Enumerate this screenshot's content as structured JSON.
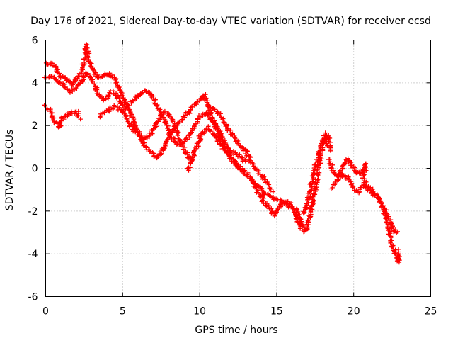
{
  "chart_data": {
    "type": "scatter",
    "title": "Day 176 of 2021, Sidereal Day-to-day VTEC variation (SDTVAR) for receiver ecsd",
    "xlabel": "GPS time / hours",
    "ylabel": "SDTVAR / TECUs",
    "xlim": [
      0,
      25
    ],
    "ylim": [
      -6,
      6
    ],
    "grid": true,
    "marker": "+",
    "color": "#ff0000",
    "x_ticks": [
      {
        "value": 0,
        "label": "0"
      },
      {
        "value": 5,
        "label": "5"
      },
      {
        "value": 10,
        "label": "10"
      },
      {
        "value": 15,
        "label": "15"
      },
      {
        "value": 20,
        "label": "20"
      },
      {
        "value": 25,
        "label": "25"
      }
    ],
    "y_ticks": [
      {
        "value": -6,
        "label": "-6"
      },
      {
        "value": -4,
        "label": "-4"
      },
      {
        "value": -2,
        "label": "-2"
      },
      {
        "value": 0,
        "label": "0"
      },
      {
        "value": 2,
        "label": "2"
      },
      {
        "value": 4,
        "label": "4"
      },
      {
        "value": 6,
        "label": "6"
      }
    ],
    "series": [
      {
        "name": "trace-1",
        "points": [
          [
            0.0,
            4.9
          ],
          [
            0.3,
            4.9
          ],
          [
            0.6,
            4.8
          ],
          [
            0.9,
            4.3
          ],
          [
            1.3,
            4.2
          ],
          [
            1.7,
            3.9
          ],
          [
            2.0,
            4.2
          ],
          [
            2.2,
            4.4
          ],
          [
            2.4,
            4.6
          ],
          [
            2.55,
            5.3
          ],
          [
            2.65,
            5.8
          ],
          [
            2.8,
            5.1
          ],
          [
            3.0,
            4.7
          ],
          [
            3.3,
            4.3
          ],
          [
            3.6,
            4.3
          ],
          [
            3.9,
            4.4
          ],
          [
            4.2,
            4.4
          ],
          [
            4.5,
            4.2
          ],
          [
            4.8,
            3.7
          ],
          [
            5.1,
            3.2
          ],
          [
            5.4,
            2.7
          ],
          [
            5.7,
            2.2
          ],
          [
            6.0,
            1.7
          ],
          [
            6.3,
            1.4
          ],
          [
            6.6,
            1.4
          ],
          [
            6.9,
            1.7
          ],
          [
            7.2,
            2.1
          ],
          [
            7.5,
            2.5
          ],
          [
            7.8,
            2.6
          ],
          [
            8.1,
            2.4
          ],
          [
            8.4,
            1.9
          ],
          [
            8.7,
            1.4
          ],
          [
            9.0,
            0.9
          ],
          [
            9.3,
            0.5
          ],
          [
            9.5,
            0.3
          ]
        ]
      },
      {
        "name": "trace-2",
        "points": [
          [
            0.0,
            4.2
          ],
          [
            0.4,
            4.3
          ],
          [
            0.8,
            4.1
          ],
          [
            1.2,
            3.8
          ],
          [
            1.6,
            3.6
          ],
          [
            2.0,
            3.8
          ],
          [
            2.3,
            4.0
          ],
          [
            2.6,
            4.5
          ],
          [
            2.9,
            4.2
          ],
          [
            3.2,
            3.8
          ],
          [
            3.5,
            3.4
          ],
          [
            3.8,
            3.2
          ],
          [
            4.0,
            3.3
          ],
          [
            4.3,
            3.6
          ],
          [
            4.6,
            3.4
          ],
          [
            4.9,
            3.0
          ],
          [
            5.2,
            2.8
          ],
          [
            5.6,
            3.1
          ],
          [
            6.0,
            3.4
          ],
          [
            6.4,
            3.6
          ],
          [
            6.8,
            3.5
          ],
          [
            7.2,
            3.0
          ],
          [
            7.6,
            2.4
          ],
          [
            8.0,
            1.7
          ],
          [
            8.4,
            1.2
          ],
          [
            8.8,
            1.1
          ],
          [
            9.2,
            1.4
          ],
          [
            9.6,
            1.9
          ],
          [
            10.0,
            2.4
          ],
          [
            10.4,
            2.6
          ],
          [
            10.8,
            2.3
          ],
          [
            11.2,
            1.8
          ],
          [
            11.6,
            1.2
          ],
          [
            12.0,
            0.8
          ],
          [
            12.5,
            0.6
          ],
          [
            13.0,
            0.3
          ]
        ]
      },
      {
        "name": "trace-3",
        "points": [
          [
            0.0,
            2.9
          ],
          [
            0.3,
            2.7
          ],
          [
            0.5,
            2.3
          ],
          [
            0.7,
            2.1
          ],
          [
            0.9,
            1.9
          ],
          [
            1.0,
            2.3
          ],
          [
            1.4,
            2.5
          ],
          [
            1.8,
            2.6
          ],
          [
            2.1,
            2.6
          ],
          [
            2.2,
            2.3
          ]
        ]
      },
      {
        "name": "trace-4",
        "points": [
          [
            3.5,
            2.4
          ],
          [
            4.0,
            2.7
          ],
          [
            4.5,
            2.9
          ],
          [
            5.0,
            2.7
          ],
          [
            5.5,
            2.0
          ],
          [
            6.0,
            1.5
          ],
          [
            6.5,
            1.0
          ],
          [
            7.0,
            0.6
          ],
          [
            7.3,
            0.5
          ],
          [
            7.6,
            0.9
          ],
          [
            8.0,
            1.5
          ],
          [
            8.5,
            2.0
          ],
          [
            9.0,
            2.4
          ],
          [
            9.5,
            2.8
          ],
          [
            10.0,
            3.2
          ],
          [
            10.3,
            3.4
          ],
          [
            10.5,
            3.0
          ],
          [
            10.8,
            2.4
          ],
          [
            11.2,
            1.7
          ],
          [
            11.6,
            1.0
          ],
          [
            12.0,
            0.5
          ],
          [
            12.5,
            0.1
          ],
          [
            13.0,
            -0.2
          ]
        ]
      },
      {
        "name": "trace-5",
        "points": [
          [
            9.2,
            -0.1
          ],
          [
            9.5,
            0.4
          ],
          [
            9.8,
            1.0
          ],
          [
            10.1,
            1.6
          ],
          [
            10.5,
            1.9
          ],
          [
            10.9,
            1.6
          ],
          [
            11.3,
            1.2
          ],
          [
            11.7,
            0.8
          ],
          [
            12.1,
            0.4
          ],
          [
            12.6,
            0.0
          ],
          [
            13.1,
            -0.3
          ],
          [
            13.5,
            -0.6
          ],
          [
            13.9,
            -0.9
          ],
          [
            14.3,
            -1.2
          ],
          [
            14.7,
            -1.4
          ],
          [
            15.1,
            -1.5
          ],
          [
            15.5,
            -1.6
          ],
          [
            15.9,
            -1.8
          ],
          [
            16.2,
            -2.1
          ],
          [
            16.4,
            -2.5
          ],
          [
            16.6,
            -2.8
          ]
        ]
      },
      {
        "name": "trace-6",
        "points": [
          [
            10.6,
            2.9
          ],
          [
            11.0,
            2.8
          ],
          [
            11.4,
            2.4
          ],
          [
            11.8,
            1.9
          ],
          [
            12.2,
            1.5
          ],
          [
            12.6,
            1.1
          ],
          [
            13.0,
            0.8
          ],
          [
            13.3,
            0.4
          ],
          [
            13.6,
            0.0
          ],
          [
            13.9,
            -0.3
          ],
          [
            14.2,
            -0.5
          ],
          [
            14.5,
            -0.9
          ],
          [
            14.8,
            -1.1
          ]
        ]
      },
      {
        "name": "trace-7",
        "points": [
          [
            13.3,
            -0.5
          ],
          [
            13.7,
            -1.0
          ],
          [
            14.1,
            -1.5
          ],
          [
            14.5,
            -1.8
          ],
          [
            14.8,
            -2.2
          ],
          [
            15.1,
            -1.9
          ],
          [
            15.4,
            -1.6
          ],
          [
            15.8,
            -1.6
          ],
          [
            16.2,
            -1.9
          ],
          [
            16.4,
            -2.2
          ],
          [
            16.6,
            -2.6
          ],
          [
            16.8,
            -3.0
          ],
          [
            17.0,
            -2.7
          ],
          [
            17.2,
            -2.0
          ],
          [
            17.4,
            -1.3
          ],
          [
            17.6,
            -0.5
          ],
          [
            17.8,
            0.4
          ],
          [
            18.0,
            1.2
          ],
          [
            18.2,
            1.5
          ],
          [
            18.3,
            1.0
          ]
        ]
      },
      {
        "name": "trace-8",
        "points": [
          [
            16.8,
            -2.1
          ],
          [
            17.0,
            -1.6
          ],
          [
            17.2,
            -0.9
          ],
          [
            17.4,
            -0.2
          ],
          [
            17.6,
            0.4
          ],
          [
            17.8,
            0.9
          ],
          [
            18.0,
            1.3
          ],
          [
            18.2,
            1.6
          ],
          [
            18.4,
            1.3
          ],
          [
            18.6,
            0.8
          ]
        ]
      },
      {
        "name": "trace-9",
        "points": [
          [
            18.4,
            0.4
          ],
          [
            18.7,
            -0.2
          ],
          [
            19.0,
            -0.4
          ],
          [
            19.3,
            0.1
          ],
          [
            19.6,
            0.4
          ],
          [
            19.9,
            0.1
          ],
          [
            20.2,
            -0.2
          ],
          [
            20.5,
            -0.2
          ],
          [
            20.8,
            0.2
          ],
          [
            20.6,
            -0.5
          ],
          [
            20.9,
            -0.9
          ],
          [
            21.3,
            -1.2
          ],
          [
            21.7,
            -1.5
          ],
          [
            22.0,
            -1.9
          ],
          [
            22.3,
            -2.4
          ],
          [
            22.6,
            -2.9
          ],
          [
            22.9,
            -3.0
          ]
        ]
      },
      {
        "name": "trace-10",
        "points": [
          [
            18.6,
            -0.9
          ],
          [
            18.9,
            -0.6
          ],
          [
            19.3,
            -0.3
          ],
          [
            19.7,
            -0.5
          ],
          [
            20.0,
            -0.9
          ],
          [
            20.3,
            -1.1
          ],
          [
            20.6,
            -0.8
          ],
          [
            21.0,
            -0.9
          ],
          [
            21.4,
            -1.2
          ],
          [
            21.8,
            -1.6
          ],
          [
            22.1,
            -2.3
          ],
          [
            22.3,
            -3.0
          ],
          [
            22.5,
            -3.6
          ],
          [
            22.7,
            -4.0
          ],
          [
            22.9,
            -4.4
          ],
          [
            22.9,
            -3.8
          ]
        ]
      }
    ]
  }
}
